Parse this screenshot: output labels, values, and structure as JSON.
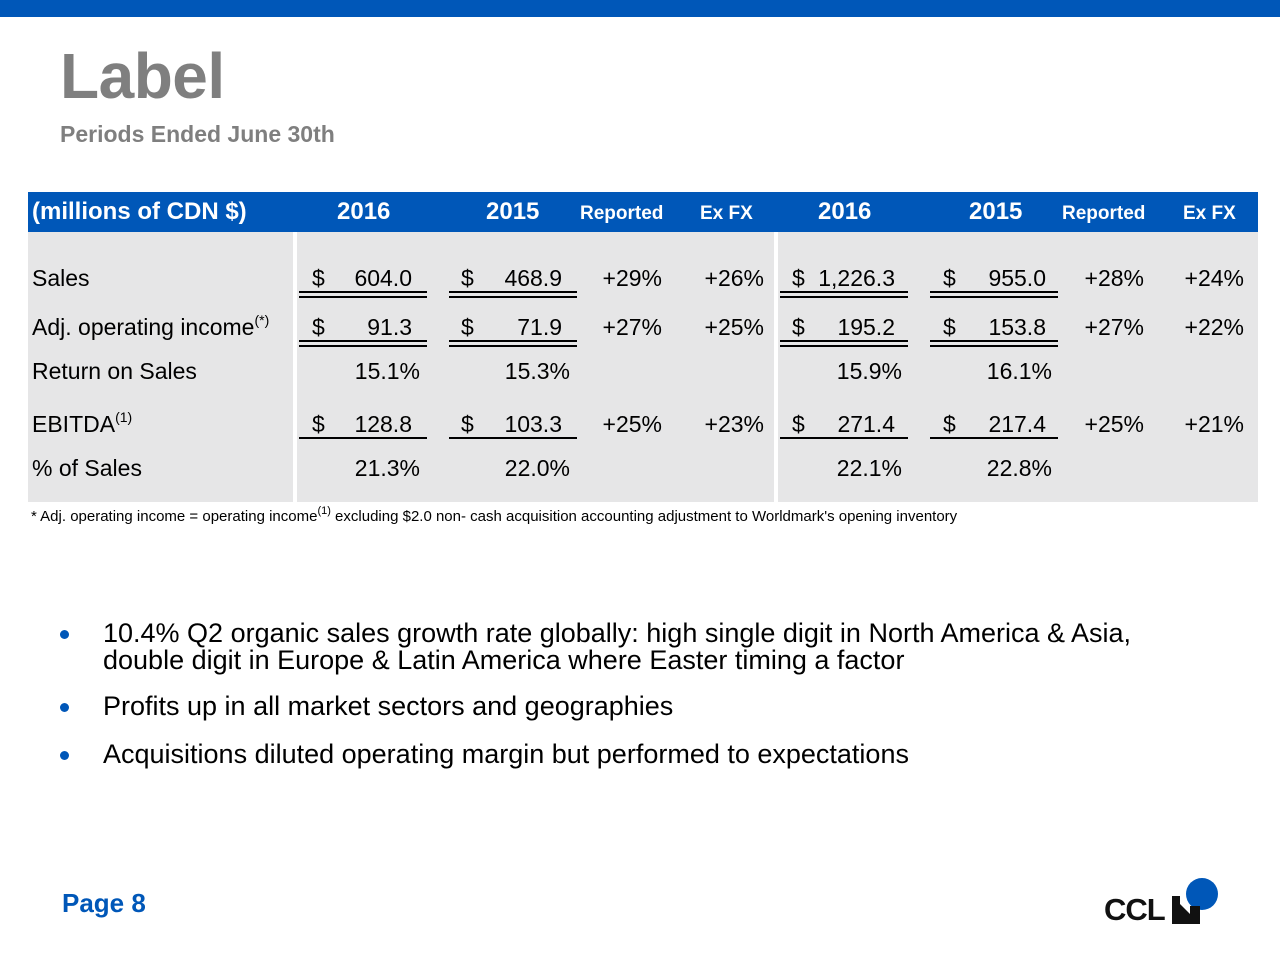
{
  "slide": {
    "title": "Label",
    "subtitle": "Periods Ended June 30th",
    "page_label": "Page 8"
  },
  "brand": {
    "logo_text": "CCL",
    "accent_color": "#0057b8",
    "panel_color": "#e6e6e7"
  },
  "table": {
    "unit_label": "(millions of CDN $)",
    "headers": [
      "2016",
      "2015",
      "Reported",
      "Ex FX",
      "2016",
      "2015",
      "Reported",
      "Ex FX"
    ],
    "rows": [
      {
        "label": "Sales",
        "sup": "",
        "cells": [
          "$",
          "604.0",
          "$",
          "468.9",
          "+29%",
          "+26%",
          "$",
          "1,226.3",
          "$",
          "955.0",
          "+28%",
          "+24%"
        ]
      },
      {
        "label": "Adj. operating income",
        "sup": "(*)",
        "cells": [
          "$",
          "91.3",
          "$",
          "71.9",
          "+27%",
          "+25%",
          "$",
          "195.2",
          "$",
          "153.8",
          "+27%",
          "+22%"
        ]
      },
      {
        "label": "Return on Sales",
        "sup": "",
        "cells": [
          "",
          "15.1%",
          "",
          "15.3%",
          "",
          "",
          "",
          "15.9%",
          "",
          "16.1%",
          "",
          ""
        ]
      },
      {
        "label": "EBITDA",
        "sup": "(1)",
        "cells": [
          "$",
          "128.8",
          "$",
          "103.3",
          "+25%",
          "+23%",
          "$",
          "271.4",
          "$",
          "217.4",
          "+25%",
          "+21%"
        ]
      },
      {
        "label": "% of Sales",
        "sup": "",
        "cells": [
          "",
          "21.3%",
          "",
          "22.0%",
          "",
          "",
          "",
          "22.1%",
          "",
          "22.8%",
          "",
          ""
        ]
      }
    ]
  },
  "footnote": {
    "part1": "* Adj. operating income = operating income",
    "sup": "(1)",
    "part2": " excluding $2.0 non- cash acquisition accounting adjustment to Worldmark's opening inventory"
  },
  "bullets": [
    "10.4% Q2 organic sales growth rate globally: high single digit in North America & Asia, double digit in Europe & Latin America where Easter timing a factor",
    "Profits up in all market sectors and geographies",
    "Acquisitions diluted operating margin but performed to expectations"
  ]
}
